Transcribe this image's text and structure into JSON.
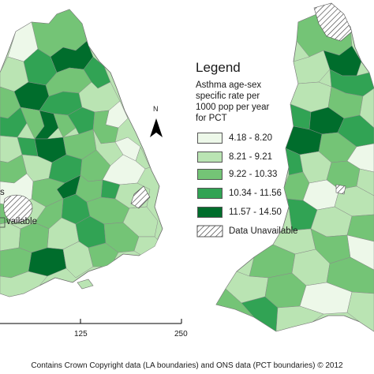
{
  "legend": {
    "title": "Legend",
    "subtitle_lines": [
      "Asthma age-sex",
      "specific rate per",
      "1000 pop per year",
      "for PCT"
    ],
    "classes": [
      {
        "label": "4.18 - 8.20",
        "color": "#edf8e9"
      },
      {
        "label": "8.21 - 9.21",
        "color": "#bae4b3"
      },
      {
        "label": "9.22 - 10.33",
        "color": "#74c476"
      },
      {
        "label": "10.34 - 11.56",
        "color": "#31a354"
      },
      {
        "label": "11.57 - 14.50",
        "color": "#006d2c"
      }
    ],
    "unavailable_label": "Data Unavailable"
  },
  "north_arrow": {
    "label": "N"
  },
  "scale_bar": {
    "ticks": [
      "125",
      "250"
    ]
  },
  "credit": "Contains Crown Copyright data (LA boundaries) and ONS data (PCT boundaries) © 2012",
  "clipped_text": {
    "left_unavailable_fragment": "vailable",
    "left_s_fragment": "s"
  }
}
